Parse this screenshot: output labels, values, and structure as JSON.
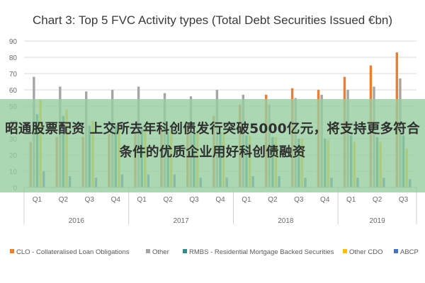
{
  "headline": "昭通股票配资 上交所去年科创债发行突破5000亿元，将支持更多符合条件的优质企业用好科创债融资",
  "chart_data": {
    "type": "bar",
    "title": "Chart 3: Top 5 FVC Activity types (Total Debt Securities Issued €bn)",
    "categories": [
      "Q1",
      "Q2",
      "Q3",
      "Q4",
      "Q1",
      "Q2",
      "Q3",
      "Q4",
      "Q1",
      "Q2",
      "Q3",
      "Q4",
      "Q1",
      "Q2",
      "Q3"
    ],
    "years": [
      "2016",
      "2017",
      "2018",
      "2019"
    ],
    "ylim": [
      0,
      90
    ],
    "yticks": [
      "0",
      "10",
      "20",
      "30",
      "40",
      "50",
      "60",
      "70",
      "80",
      "90"
    ],
    "grid": true,
    "legend_position": "bottom",
    "series": [
      {
        "name": "CLO - Collateralised Loan Obligations",
        "color": "#ed7d31",
        "values": [
          28,
          31,
          31,
          33,
          34,
          36,
          38,
          44,
          51,
          57,
          61,
          60,
          68,
          75,
          83
        ]
      },
      {
        "name": "Other",
        "color": "#a5a5a5",
        "values": [
          68,
          62,
          59,
          60,
          62,
          58,
          56,
          60,
          57,
          51,
          55,
          57,
          60,
          62,
          67
        ]
      },
      {
        "name": "RMBS - Residential Mortgage Backed Securities",
        "color": "#2f8e86",
        "values": [
          45,
          44,
          38,
          38,
          36,
          34,
          34,
          34,
          32,
          31,
          30,
          30,
          32,
          31,
          32
        ]
      },
      {
        "name": "Other CDO",
        "color": "#ffc000",
        "values": [
          54,
          48,
          41,
          38,
          36,
          35,
          35,
          34,
          32,
          31,
          30,
          29,
          28,
          28,
          24
        ]
      },
      {
        "name": "ABCP",
        "color": "#4472c4",
        "values": [
          10,
          7,
          6,
          8,
          8,
          8,
          6,
          6,
          7,
          7,
          6,
          6,
          6,
          6,
          5
        ]
      }
    ]
  }
}
